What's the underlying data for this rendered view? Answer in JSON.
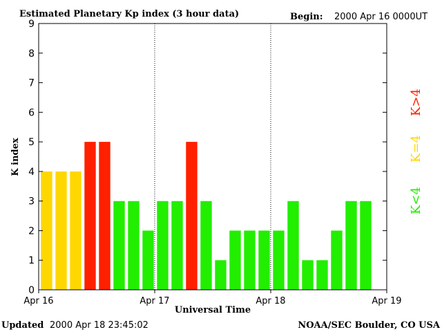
{
  "header": {
    "title": "Estimated Planetary Kp index (3 hour data)",
    "begin_label": "Begin:",
    "begin_value": "2000 Apr 16 0000UT"
  },
  "footer": {
    "updated_label": "Updated",
    "updated_value": "2000 Apr 18 23:45:02",
    "source": "NOAA/SEC Boulder, CO USA"
  },
  "legend": {
    "high": {
      "label": "K>4",
      "color": "#ff2000"
    },
    "equal": {
      "label": "K=4",
      "color": "#ffd700"
    },
    "low": {
      "label": "K<4",
      "color": "#22ee00"
    }
  },
  "chart_data": {
    "type": "bar",
    "title": "Estimated Planetary Kp index (3 hour data)",
    "xlabel": "Universal Time",
    "ylabel": "K index",
    "ylim": [
      0,
      9
    ],
    "yticks": [
      "0",
      "1",
      "2",
      "3",
      "4",
      "5",
      "6",
      "7",
      "8",
      "9"
    ],
    "xticks": [
      "Apr 16",
      "Apr 17",
      "Apr 18",
      "Apr 19"
    ],
    "interval_hours": 3,
    "values": [
      4,
      4,
      4,
      5,
      5,
      3,
      3,
      2,
      3,
      3,
      5,
      3,
      1,
      2,
      2,
      2,
      2,
      3,
      1,
      1,
      2,
      3,
      3
    ],
    "grid": "dotted vertical lines at day boundaries"
  }
}
